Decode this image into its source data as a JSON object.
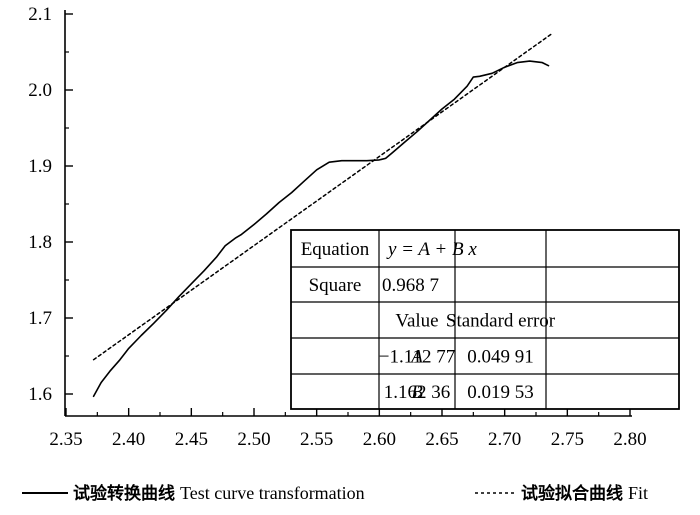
{
  "chart_data": {
    "type": "line",
    "xlim": [
      2.35,
      2.8
    ],
    "ylim": [
      1.57,
      2.1
    ],
    "x_ticks": [
      "2.35",
      "2.40",
      "2.45",
      "2.50",
      "2.55",
      "2.60",
      "2.65",
      "2.70",
      "2.75",
      "2.80"
    ],
    "y_ticks": [
      "1.6",
      "1.7",
      "1.8",
      "1.9",
      "2.0",
      "2.1"
    ],
    "x_tick_values": [
      2.35,
      2.4,
      2.45,
      2.5,
      2.55,
      2.6,
      2.65,
      2.7,
      2.75,
      2.8
    ],
    "y_tick_values": [
      1.6,
      1.7,
      1.8,
      1.9,
      2.0,
      2.1
    ],
    "grid": false,
    "legend_position": "bottom",
    "series": [
      {
        "name_cn": "试验转换曲线",
        "name_en": "Test curve transformation",
        "style": "solid",
        "x": [
          2.372,
          2.378,
          2.385,
          2.393,
          2.4,
          2.41,
          2.42,
          2.43,
          2.44,
          2.45,
          2.46,
          2.47,
          2.477,
          2.485,
          2.49,
          2.5,
          2.51,
          2.52,
          2.53,
          2.54,
          2.55,
          2.56,
          2.57,
          2.58,
          2.59,
          2.6,
          2.605,
          2.61,
          2.62,
          2.63,
          2.64,
          2.65,
          2.66,
          2.67,
          2.675,
          2.68,
          2.685,
          2.69,
          2.7,
          2.71,
          2.72,
          2.73,
          2.735
        ],
        "y": [
          1.597,
          1.615,
          1.63,
          1.645,
          1.66,
          1.677,
          1.693,
          1.71,
          1.728,
          1.745,
          1.762,
          1.78,
          1.795,
          1.805,
          1.81,
          1.823,
          1.837,
          1.852,
          1.865,
          1.88,
          1.895,
          1.905,
          1.907,
          1.907,
          1.907,
          1.908,
          1.91,
          1.917,
          1.931,
          1.945,
          1.96,
          1.975,
          1.988,
          2.005,
          2.017,
          2.018,
          2.02,
          2.022,
          2.03,
          2.036,
          2.038,
          2.036,
          2.032
        ]
      },
      {
        "name_cn": "试验拟合曲线",
        "name_en": "Fit",
        "style": "dotted",
        "x": [
          2.372,
          2.738
        ],
        "y": [
          1.6451,
          2.0745
        ]
      }
    ],
    "fit_table": {
      "rows": [
        [
          "Equation",
          "y = A + B x",
          ""
        ],
        [
          "Square",
          "0.968 7",
          ""
        ],
        [
          "",
          "Value",
          "Standard error"
        ],
        [
          "A",
          "−1.112 77",
          "0.049 91"
        ],
        [
          "B",
          "1.162 36",
          "0.019 53"
        ]
      ]
    }
  }
}
